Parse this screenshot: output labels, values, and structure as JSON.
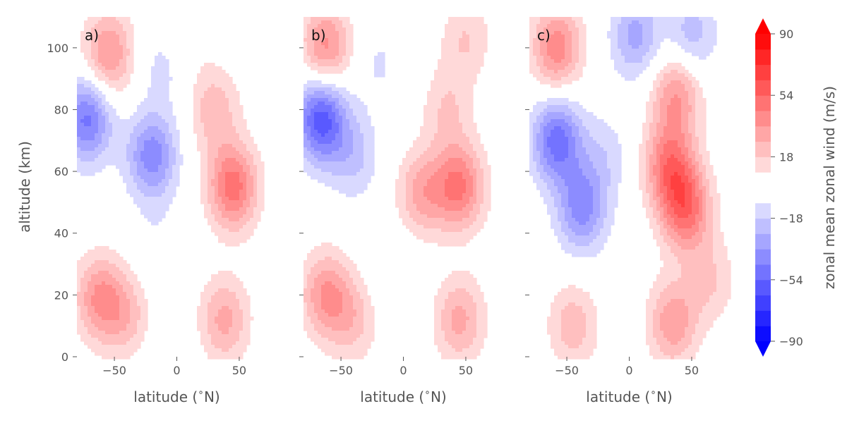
{
  "chart_data": {
    "type": "heatmap",
    "ylabel": "altitude (km)",
    "colorbar": {
      "label": "zonal mean zonal wind (m/s)",
      "ticks": [
        90,
        54,
        18,
        -18,
        -54,
        -90
      ],
      "range": [
        -90,
        90
      ],
      "extend": "both",
      "colormap": "bwr",
      "center_gap": true,
      "negative_color": "#0000ff",
      "positive_color": "#ff0000"
    },
    "panels": [
      {
        "label": "a)",
        "xlabel": "latitude ($^\\circ$N)",
        "xlim": [
          -80,
          80
        ],
        "ylim": [
          0,
          110
        ],
        "xticks": [
          -50,
          0,
          50
        ],
        "yticks": [
          0,
          20,
          40,
          60,
          80,
          100
        ],
        "features": [
          {
            "lat": -55,
            "alt": 98,
            "value": 38
          },
          {
            "lat": -72,
            "alt": 77,
            "value": -48
          },
          {
            "lat": -20,
            "alt": 65,
            "value": -42
          },
          {
            "lat": -10,
            "alt": 95,
            "value": -14
          },
          {
            "lat": 45,
            "alt": 55,
            "value": 50
          },
          {
            "lat": 30,
            "alt": 80,
            "value": 24
          },
          {
            "lat": -62,
            "alt": 19,
            "value": 36
          },
          {
            "lat": -40,
            "alt": 13,
            "value": 22
          },
          {
            "lat": 38,
            "alt": 12,
            "value": 30
          },
          {
            "lat": -15,
            "alt": 35,
            "value": -8
          },
          {
            "lat": -10,
            "alt": 3,
            "value": -6
          },
          {
            "lat": 5,
            "alt": 104,
            "value": 10
          }
        ]
      },
      {
        "label": "b)",
        "xlabel": "latitude ($^\\circ$N)",
        "xlim": [
          -80,
          80
        ],
        "ylim": [
          0,
          110
        ],
        "xticks": [
          -50,
          0,
          50
        ],
        "yticks": [
          0,
          20,
          40,
          60,
          80,
          100
        ],
        "features": [
          {
            "lat": -62,
            "alt": 100,
            "value": 40
          },
          {
            "lat": -66,
            "alt": 77,
            "value": -60
          },
          {
            "lat": -40,
            "alt": 65,
            "value": -20
          },
          {
            "lat": -20,
            "alt": 95,
            "value": -10
          },
          {
            "lat": 45,
            "alt": 55,
            "value": 46
          },
          {
            "lat": 15,
            "alt": 53,
            "value": 30
          },
          {
            "lat": 35,
            "alt": 80,
            "value": 18
          },
          {
            "lat": 50,
            "alt": 103,
            "value": 18
          },
          {
            "lat": -62,
            "alt": 20,
            "value": 36
          },
          {
            "lat": -40,
            "alt": 12,
            "value": 20
          },
          {
            "lat": 45,
            "alt": 12,
            "value": 30
          },
          {
            "lat": -10,
            "alt": 28,
            "value": -8
          }
        ]
      },
      {
        "label": "c)",
        "xlabel": "latitude ($^\\circ$N)",
        "xlim": [
          -80,
          80
        ],
        "ylim": [
          0,
          110
        ],
        "xticks": [
          -50,
          0,
          50
        ],
        "yticks": [
          0,
          20,
          40,
          60,
          80,
          100
        ],
        "features": [
          {
            "lat": -58,
            "alt": 100,
            "value": 42
          },
          {
            "lat": -58,
            "alt": 70,
            "value": -50
          },
          {
            "lat": -38,
            "alt": 48,
            "value": -40
          },
          {
            "lat": -20,
            "alt": 65,
            "value": -14
          },
          {
            "lat": 5,
            "alt": 104,
            "value": -30
          },
          {
            "lat": 50,
            "alt": 104,
            "value": -24
          },
          {
            "lat": 45,
            "alt": 48,
            "value": 50
          },
          {
            "lat": 32,
            "alt": 62,
            "value": 44
          },
          {
            "lat": 38,
            "alt": 85,
            "value": 36
          },
          {
            "lat": -45,
            "alt": 10,
            "value": 24
          },
          {
            "lat": 35,
            "alt": 11,
            "value": 34
          },
          {
            "lat": 65,
            "alt": 25,
            "value": 18
          }
        ]
      }
    ]
  }
}
